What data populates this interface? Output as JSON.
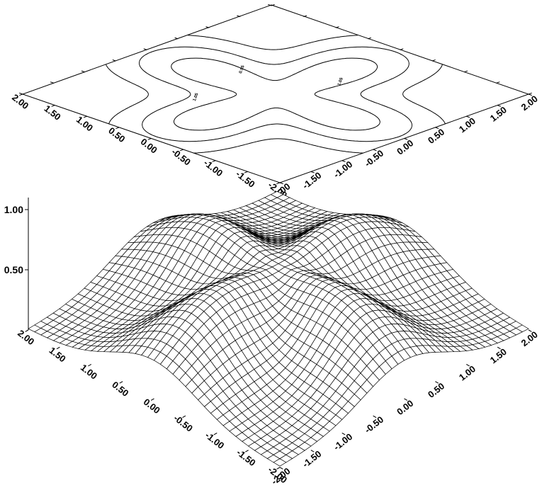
{
  "chart_data": [
    {
      "type": "contour",
      "x_ticks": [
        "-2.00",
        "-1.50",
        "-1.00",
        "-0.50",
        "0.00",
        "0.50",
        "1.00",
        "1.50",
        "2.00"
      ],
      "y_ticks": [
        "-2.00",
        "-1.50",
        "-1.00",
        "-0.50",
        "0.00",
        "0.50",
        "1.00",
        "1.50",
        "2.00"
      ],
      "xlim": [
        -2,
        2
      ],
      "ylim": [
        -2,
        2
      ],
      "contour_levels": [
        0.2,
        0.35,
        0.5,
        0.65,
        0.8,
        0.95,
        1.05
      ],
      "contour_labels": [
        {
          "text": "1.05",
          "x": -0.7,
          "y": 0.55
        },
        {
          "text": "1.05",
          "x": 0.8,
          "y": -0.25
        },
        {
          "text": "0.95",
          "x": 0.3,
          "y": 0.8
        }
      ],
      "surface": "z = exp(-(x^2+y^2)/2) * (0.55 + 0.45 * (x^2 + y^2) * (0.5 + 0.5 * cos(4 * atan2(y, x))))",
      "grid": false
    },
    {
      "type": "surface",
      "x_ticks": [
        "-2.00",
        "-1.50",
        "-1.00",
        "-0.50",
        "0.00",
        "0.50",
        "1.00",
        "1.50",
        "2.00"
      ],
      "y_ticks": [
        "-2.00",
        "-1.50",
        "-1.00",
        "-0.50",
        "0.00",
        "0.50",
        "1.00",
        "1.50",
        "2.00"
      ],
      "z_ticks": [
        "0.50",
        "1.00"
      ],
      "xlim": [
        -2,
        2
      ],
      "ylim": [
        -2,
        2
      ],
      "zlim": [
        0,
        1.1
      ],
      "mesh_size": 41,
      "surface": "z = exp(-(x^2+y^2)/2) * (0.55 + 0.45 * (x^2 + y^2) * (0.5 + 0.5 * cos(4 * atan2(y, x))))"
    }
  ]
}
